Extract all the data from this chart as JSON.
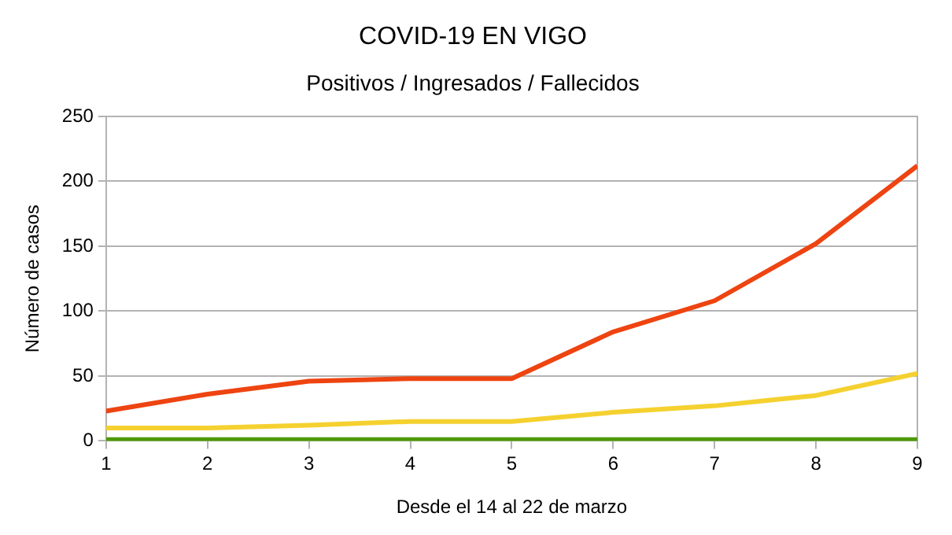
{
  "chart_data": {
    "type": "line",
    "title": "COVID-19 EN VIGO",
    "subtitle": "Positivos / Ingresados / Fallecidos",
    "xlabel": "Desde el 14 al 22 de marzo",
    "ylabel": "Número de casos",
    "x": [
      1,
      2,
      3,
      4,
      5,
      6,
      7,
      8,
      9
    ],
    "series": [
      {
        "color": "#ee4411",
        "values": [
          23,
          36,
          46,
          48,
          48,
          84,
          108,
          152,
          212
        ]
      },
      {
        "color": "#f5d130",
        "values": [
          10,
          10,
          12,
          15,
          15,
          22,
          27,
          35,
          52
        ]
      },
      {
        "color": "#4e9a06",
        "values": [
          1,
          1,
          1,
          1,
          1,
          1,
          1,
          1,
          1
        ]
      }
    ],
    "xlim": [
      1,
      9
    ],
    "xticks": [
      1,
      2,
      3,
      4,
      5,
      6,
      7,
      8,
      9
    ],
    "ylim": [
      0,
      250
    ],
    "yticks": [
      0,
      50,
      100,
      150,
      200,
      250
    ],
    "grid": "y",
    "legend": false,
    "marker": "none",
    "line_style": "solid"
  }
}
